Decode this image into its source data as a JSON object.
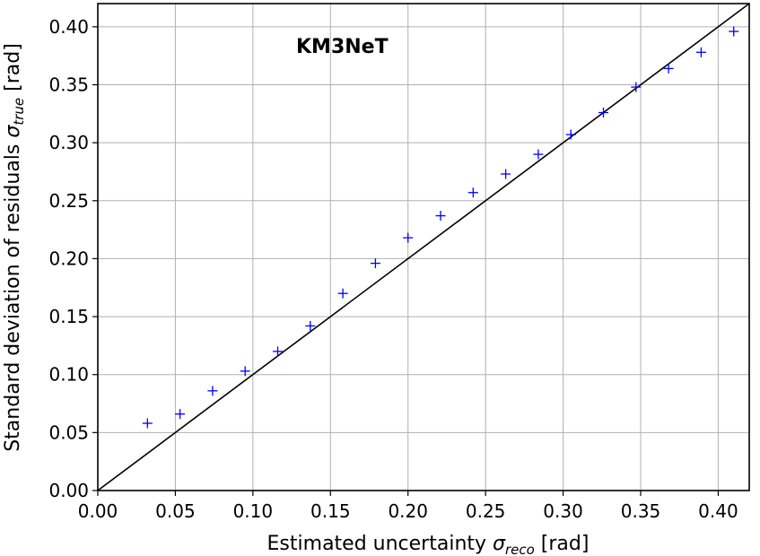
{
  "chart_data": {
    "type": "scatter",
    "title": "",
    "annotation": "KM3NeT",
    "xlabel": {
      "prefix": "Estimated uncertainty ",
      "symbol": "σ",
      "subscript": "reco",
      "suffix": " [rad]"
    },
    "ylabel": {
      "prefix": "Standard deviation of residuals ",
      "symbol": "σ",
      "subscript": "true",
      "suffix": " [rad]"
    },
    "xlim": [
      0.0,
      0.42
    ],
    "ylim": [
      0.0,
      0.42
    ],
    "xticks": [
      0.0,
      0.05,
      0.1,
      0.15,
      0.2,
      0.25,
      0.3,
      0.35,
      0.4
    ],
    "yticks": [
      0.0,
      0.05,
      0.1,
      0.15,
      0.2,
      0.25,
      0.3,
      0.35,
      0.4
    ],
    "xtick_labels": [
      "0.00",
      "0.05",
      "0.10",
      "0.15",
      "0.20",
      "0.25",
      "0.30",
      "0.35",
      "0.40"
    ],
    "ytick_labels": [
      "0.00",
      "0.05",
      "0.10",
      "0.15",
      "0.20",
      "0.25",
      "0.30",
      "0.35",
      "0.40"
    ],
    "grid": true,
    "series": [
      {
        "marker": "+",
        "color": "#0000ff",
        "x": [
          0.032,
          0.053,
          0.074,
          0.095,
          0.116,
          0.137,
          0.158,
          0.179,
          0.2,
          0.221,
          0.242,
          0.263,
          0.284,
          0.305,
          0.326,
          0.347,
          0.368,
          0.389,
          0.41
        ],
        "y": [
          0.058,
          0.066,
          0.086,
          0.103,
          0.12,
          0.142,
          0.17,
          0.196,
          0.218,
          0.237,
          0.257,
          0.273,
          0.29,
          0.307,
          0.326,
          0.348,
          0.364,
          0.378,
          0.396
        ]
      }
    ],
    "reference_line": {
      "from": [
        0.0,
        0.0
      ],
      "to": [
        0.42,
        0.42
      ],
      "color": "#000000"
    }
  }
}
